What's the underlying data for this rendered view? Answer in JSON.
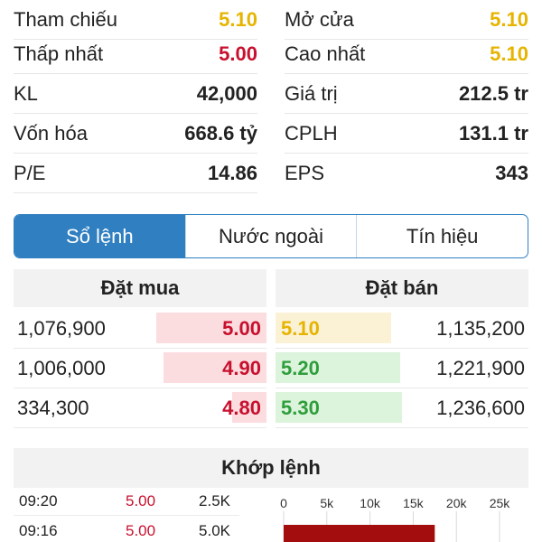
{
  "stats": {
    "left": [
      {
        "label": "Tham chiếu",
        "value": "5.10",
        "color": "#e6b400"
      },
      {
        "label": "Thấp nhất",
        "value": "5.00",
        "color": "#c8102e"
      },
      {
        "label": "KL",
        "value": "42,000"
      },
      {
        "label": "Vốn hóa",
        "value": "668.6 tỷ"
      },
      {
        "label": "P/E",
        "value": "14.86"
      }
    ],
    "right": [
      {
        "label": "Mở cửa",
        "value": "5.10",
        "color": "#e6b400"
      },
      {
        "label": "Cao nhất",
        "value": "5.10",
        "color": "#e6b400"
      },
      {
        "label": "Giá trị",
        "value": "212.5 tr"
      },
      {
        "label": "CPLH",
        "value": "131.1 tr"
      },
      {
        "label": "EPS",
        "value": "343"
      }
    ]
  },
  "tabs": [
    {
      "label": "Sổ lệnh",
      "active": true
    },
    {
      "label": "Nước ngoài",
      "active": false
    },
    {
      "label": "Tín hiệu",
      "active": false
    }
  ],
  "order_book": {
    "buy_header": "Đặt mua",
    "sell_header": "Đặt bán",
    "buy": [
      {
        "volume": "1,076,900",
        "price": "5.00"
      },
      {
        "volume": "1,006,000",
        "price": "4.90"
      },
      {
        "volume": "334,300",
        "price": "4.80"
      }
    ],
    "sell": [
      {
        "price": "5.10",
        "volume": "1,135,200"
      },
      {
        "price": "5.20",
        "volume": "1,221,900"
      },
      {
        "price": "5.30",
        "volume": "1,236,600"
      }
    ]
  },
  "matched": {
    "header": "Khớp lệnh",
    "trades": [
      {
        "time": "09:20",
        "price": "5.00",
        "volume": "2.5K"
      },
      {
        "time": "09:16",
        "price": "5.00",
        "volume": "5.0K"
      }
    ]
  },
  "chart_data": {
    "type": "bar",
    "orientation": "horizontal",
    "x_ticks": [
      "0",
      "5k",
      "10k",
      "15k",
      "20k",
      "25k"
    ],
    "xlim": [
      0,
      25000
    ],
    "grid": true,
    "series": [
      {
        "values": [
          17500
        ],
        "color": "#a30d0d"
      }
    ]
  }
}
